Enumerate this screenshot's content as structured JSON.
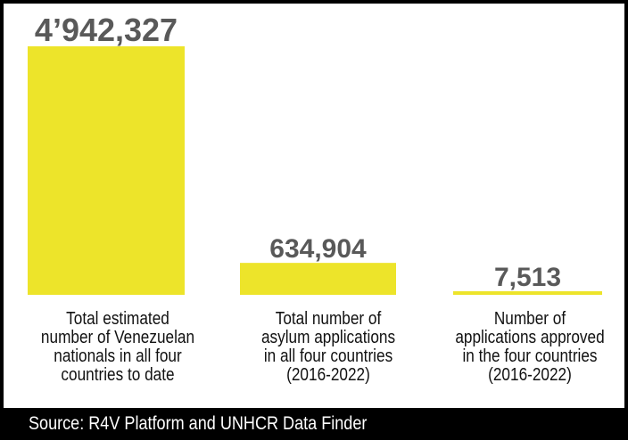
{
  "chart_data": {
    "type": "bar",
    "categories": [
      "Total estimated\nnumber of Venezuelan\nnationals in all four\ncountries to date",
      "Total number of\nasylum applications\nin all four countries\n(2016-2022)",
      "Number of\napplications approved\nin the four countries\n(2016-2022)"
    ],
    "values": [
      4942327,
      634904,
      7513
    ],
    "value_labels": [
      "4’942,327",
      "634,904",
      "7,513"
    ],
    "title": "",
    "xlabel": "",
    "ylabel": "",
    "ylim": [
      0,
      4942327
    ],
    "grid": false,
    "legend": "none"
  },
  "colors": {
    "bar": "#ede42a",
    "value_text": "#595959",
    "background": "#ffffff",
    "frame": "#000000"
  },
  "source": "Source: R4V Platform and UNHCR Data Finder"
}
